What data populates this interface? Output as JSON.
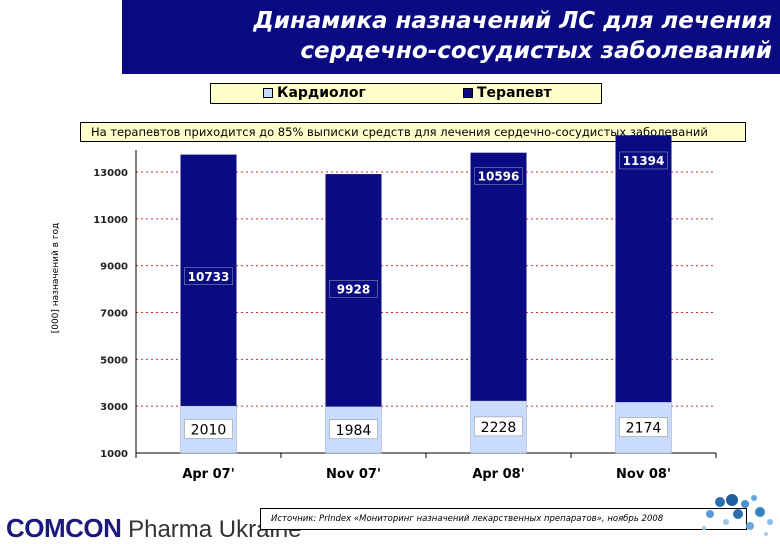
{
  "header": {
    "title_line1": "Динамика назначений ЛС для лечения",
    "title_line2": "сердечно-сосудистых заболеваний"
  },
  "note": "На терапевтов приходится до 85% выписки средств для лечения сердечно-сосудистых заболеваний",
  "footer": {
    "logo_brand": "COMCON",
    "logo_rest": " Pharma Ukraine",
    "source": "Источник: PrIndex «Мониторинг назначений лекарственных препаратов», ноябрь 2008"
  },
  "colors": {
    "title_band": "#0a0a82",
    "therapist": "#0a0a82",
    "cardiologist": "#c9dcff",
    "legend_bg": "#ffffcc",
    "grid": "#d03030"
  },
  "chart_data": {
    "type": "bar",
    "stacked": true,
    "categories": [
      "Apr 07'",
      "Nov 07'",
      "Apr 08'",
      "Nov 08'"
    ],
    "series": [
      {
        "name": "Кардиолог",
        "values": [
          2010,
          1984,
          2228,
          2174
        ]
      },
      {
        "name": "Терапевт",
        "values": [
          10733,
          9928,
          10596,
          11394
        ]
      }
    ],
    "ylabel": "[000] назначений в год",
    "ylim": [
      1000,
      13000
    ],
    "yticks": [
      1000,
      3000,
      5000,
      7000,
      9000,
      11000,
      13000
    ],
    "grid": true,
    "legend_position": "top"
  }
}
